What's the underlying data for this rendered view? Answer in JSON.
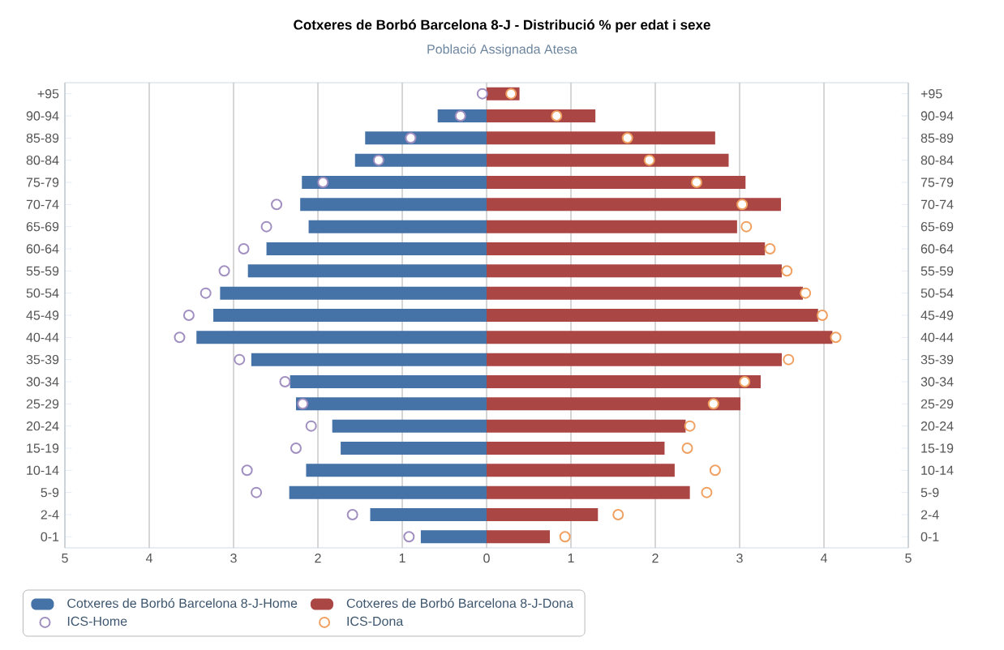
{
  "chart_data": {
    "type": "bar",
    "orientation": "horizontal",
    "title": "Cotxeres de Borbó Barcelona 8-J - Distribució % per edat i sexe",
    "subtitle": "Població Assignada Atesa",
    "categories": [
      "+95",
      "90-94",
      "85-89",
      "80-84",
      "75-79",
      "70-74",
      "65-69",
      "60-64",
      "55-59",
      "50-54",
      "45-49",
      "40-44",
      "35-39",
      "30-34",
      "25-29",
      "20-24",
      "15-19",
      "10-14",
      "5-9",
      "2-4",
      "0-1"
    ],
    "series": [
      {
        "name": "Cotxeres de Borbó Barcelona 8-J-Home",
        "color": "#4572a7",
        "values": [
          0,
          -0.58,
          -1.44,
          -1.56,
          -2.19,
          -2.21,
          -2.11,
          -2.61,
          -2.83,
          -3.16,
          -3.24,
          -3.44,
          -2.79,
          -2.33,
          -2.26,
          -1.83,
          -1.73,
          -2.14,
          -2.34,
          -1.38,
          -0.78
        ]
      },
      {
        "name": "Cotxeres de Borbó Barcelona 8-J-Dona",
        "color": "#aa4643",
        "values": [
          0.39,
          1.29,
          2.71,
          2.87,
          3.07,
          3.49,
          2.97,
          3.3,
          3.5,
          3.75,
          3.93,
          4.1,
          3.5,
          3.25,
          3.01,
          2.36,
          2.11,
          2.23,
          2.41,
          1.32,
          0.75
        ]
      },
      {
        "name": "ICS-Home",
        "type": "scatter",
        "marker": "circle",
        "color": "#a08fc0",
        "values": [
          -0.05,
          -0.31,
          -0.9,
          -1.28,
          -1.94,
          -2.49,
          -2.61,
          -2.88,
          -3.11,
          -3.33,
          -3.53,
          -3.64,
          -2.93,
          -2.39,
          -2.18,
          -2.08,
          -2.26,
          -2.84,
          -2.73,
          -1.59,
          -0.92
        ]
      },
      {
        "name": "ICS-Dona",
        "type": "scatter",
        "marker": "circle",
        "color": "#f0a060",
        "values": [
          0.29,
          0.83,
          1.67,
          1.93,
          2.49,
          3.03,
          3.08,
          3.36,
          3.56,
          3.78,
          3.98,
          4.14,
          3.58,
          3.06,
          2.69,
          2.41,
          2.38,
          2.71,
          2.61,
          1.56,
          0.93
        ]
      }
    ],
    "xlim": [
      -5,
      5
    ],
    "xticks": [
      {
        "value": -5,
        "label": "5"
      },
      {
        "value": -4,
        "label": "4"
      },
      {
        "value": -3,
        "label": "3"
      },
      {
        "value": -2,
        "label": "2"
      },
      {
        "value": -1,
        "label": "1"
      },
      0,
      1,
      2,
      3,
      4,
      5
    ],
    "stacked": true,
    "grid": "x",
    "legend": "bottom"
  }
}
